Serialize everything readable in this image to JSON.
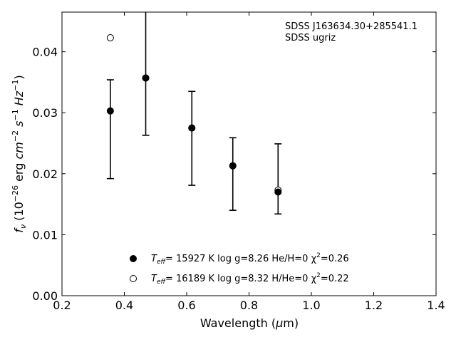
{
  "chart_data": {
    "type": "scatter",
    "annotations": [
      "SDSS J163634.30+285541.1",
      "SDSS ugriz"
    ],
    "xlabel": {
      "main": "Wavelength (",
      "mu": "μ",
      "unit": "m)"
    },
    "ylabel": {
      "f": "f",
      "sub": "ν",
      "open": " (10",
      "exp": "−26",
      "units": " erg ",
      "cm": "cm",
      "cm_exp": "−2",
      "s": " s",
      "s_exp": "−1",
      "hz": " Hz",
      "hz_exp": "−1",
      "close": ")"
    },
    "xlim": [
      0.2,
      1.4
    ],
    "ylim": [
      0.0,
      0.0465
    ],
    "xticks": [
      0.2,
      0.4,
      0.6,
      0.8,
      1.0,
      1.2,
      1.4
    ],
    "xtick_labels": [
      "0.2",
      "0.4",
      "0.6",
      "0.8",
      "1.0",
      "1.2",
      "1.4"
    ],
    "yticks": [
      0.0,
      0.01,
      0.02,
      0.03,
      0.04
    ],
    "ytick_labels": [
      "0.00",
      "0.01",
      "0.02",
      "0.03",
      "0.04"
    ],
    "grid": false,
    "legend_position": "lower-center",
    "series": [
      {
        "marker": "filled-circle",
        "legend": {
          "teff": "T",
          "teff_sub": "eff",
          "text": "= 15927 K  log g=8.26  He/H=0  χ",
          "chi_exp": "2",
          "tail": "=0.26"
        },
        "x": [
          0.3551,
          0.4686,
          0.6166,
          0.748,
          0.8932
        ],
        "y": [
          0.0303,
          0.0357,
          0.0275,
          0.0213,
          0.017
        ]
      },
      {
        "marker": "open-circle",
        "legend": {
          "teff": "T",
          "teff_sub": "eff",
          "text": "= 16189 K  log g=8.32  H/He=0  χ",
          "chi_exp": "2",
          "tail": "=0.22"
        },
        "x": [
          0.3551,
          0.4686,
          0.6166,
          0.748,
          0.8932
        ],
        "y": [
          0.0423,
          0.0357,
          0.0275,
          0.0213,
          0.0173
        ]
      }
    ],
    "observed": {
      "marker": "errorbar",
      "x": [
        0.3551,
        0.4686,
        0.6166,
        0.748,
        0.8932
      ],
      "y": [
        0.0303,
        0.0357,
        0.0275,
        0.0213,
        0.017
      ],
      "ylow": [
        0.0192,
        0.0263,
        0.0181,
        0.014,
        0.0134
      ],
      "yhigh": [
        0.0354,
        0.0465,
        0.0335,
        0.0259,
        0.0249
      ]
    }
  }
}
